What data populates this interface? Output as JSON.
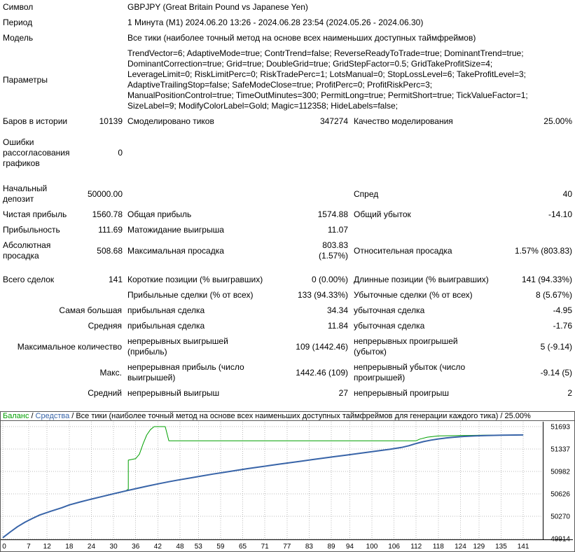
{
  "report": {
    "rows": [
      {
        "n": "row-symbol",
        "cells": [
          {
            "t": "Символ",
            "span": 2,
            "al": "l"
          },
          {
            "t": "GBPJPY (Great Britain Pound vs Japanese Yen)",
            "span": 4,
            "al": "l"
          }
        ]
      },
      {
        "n": "row-period",
        "cells": [
          {
            "t": "Период",
            "span": 2,
            "al": "l"
          },
          {
            "t": "1 Минута (M1) 2024.06.20 13:26 - 2024.06.28 23:54 (2024.05.26 - 2024.06.30)",
            "span": 4,
            "al": "l"
          }
        ]
      },
      {
        "n": "row-model",
        "cells": [
          {
            "t": "Модель",
            "span": 2,
            "al": "l"
          },
          {
            "t": "Все тики (наиболее точный метод на основе всех наименьших доступных таймфреймов)",
            "span": 4,
            "al": "l"
          }
        ]
      },
      {
        "n": "row-parameters",
        "cells": [
          {
            "t": "Параметры",
            "span": 2,
            "al": "l"
          },
          {
            "t": "TrendVector=6; AdaptiveMode=true; ContrTrend=false; ReverseReadyToTrade=true; DominantTrend=true;\nDominantCorrection=true; Grid=true; DoubleGrid=true; GridStepFactor=0.5; GridTakeProfitSize=4;\nLeverageLimit=0; RiskLimitPerc=0; RiskTradePerc=1; LotsManual=0; StopLossLevel=6; TakeProfitLevel=3;\nAdaptiveTrailingStop=false; SafeModeClose=true; ProfitPerc=0; ProfitRiskPerc=3;\nManualPositionControl=true; TimeOutMinutes=300; PermitLong=true; PermitShort=true; TickValueFactor=1;\nSizeLabel=9; ModifyColorLabel=Gold; Magic=112358; HideLabels=false;",
            "span": 4,
            "al": "l",
            "pre": true
          }
        ]
      },
      {
        "n": "row-bars-ticks-quality",
        "cells": [
          {
            "t": "Баров в истории",
            "al": "l"
          },
          {
            "t": "10139",
            "al": "r"
          },
          {
            "t": "Смоделировано тиков",
            "al": "l"
          },
          {
            "t": "347274",
            "al": "r"
          },
          {
            "t": "Качество моделирования",
            "al": "l"
          },
          {
            "t": "25.00%",
            "al": "r"
          }
        ]
      },
      {
        "sp": 8
      },
      {
        "n": "row-chart-errors",
        "cells": [
          {
            "t": "Ошибки\nрассогласования\nграфиков",
            "al": "l",
            "pre": true
          },
          {
            "t": "0",
            "al": "r"
          },
          {
            "t": "",
            "span": 4,
            "al": "l"
          }
        ]
      },
      {
        "sp": 14
      },
      {
        "n": "row-initial-deposit-spread",
        "cells": [
          {
            "t": "Начальный\nдепозит",
            "al": "l",
            "pre": true
          },
          {
            "t": "50000.00",
            "al": "r"
          },
          {
            "t": "",
            "al": "l"
          },
          {
            "t": "",
            "al": "r"
          },
          {
            "t": "Спред",
            "al": "l"
          },
          {
            "t": "40",
            "al": "r"
          }
        ]
      },
      {
        "n": "row-net-profit",
        "cells": [
          {
            "t": "Чистая прибыль",
            "al": "l"
          },
          {
            "t": "1560.78",
            "al": "r"
          },
          {
            "t": "Общая прибыль",
            "al": "l"
          },
          {
            "t": "1574.88",
            "al": "r"
          },
          {
            "t": "Общий убыток",
            "al": "l"
          },
          {
            "t": "-14.10",
            "al": "r"
          }
        ]
      },
      {
        "n": "row-profit-factor",
        "cells": [
          {
            "t": "Прибыльность",
            "al": "l"
          },
          {
            "t": "111.69",
            "al": "r"
          },
          {
            "t": "Матожидание выигрыша",
            "al": "l"
          },
          {
            "t": "11.07",
            "al": "r"
          },
          {
            "t": "",
            "al": "l"
          },
          {
            "t": "",
            "al": "r"
          }
        ]
      },
      {
        "n": "row-drawdown",
        "cells": [
          {
            "t": "Абсолютная\nпросадка",
            "al": "l",
            "pre": true
          },
          {
            "t": "508.68",
            "al": "r"
          },
          {
            "t": "Максимальная просадка",
            "al": "l"
          },
          {
            "t": "803.83 (1.57%)",
            "al": "r"
          },
          {
            "t": "Относительная просадка",
            "al": "l"
          },
          {
            "t": "1.57% (803.83)",
            "al": "r"
          }
        ]
      },
      {
        "sp": 12
      },
      {
        "n": "row-total-trades",
        "cells": [
          {
            "t": "Всего сделок",
            "al": "l"
          },
          {
            "t": "141",
            "al": "r"
          },
          {
            "t": "Короткие позиции (% выигравших)",
            "al": "l"
          },
          {
            "t": "0 (0.00%)",
            "al": "r"
          },
          {
            "t": "Длинные позиции (% выигравших)",
            "al": "l"
          },
          {
            "t": "141 (94.33%)",
            "al": "r"
          }
        ]
      },
      {
        "n": "row-profit-loss-trades",
        "cells": [
          {
            "t": "",
            "al": "l"
          },
          {
            "t": "",
            "al": "r"
          },
          {
            "t": "Прибыльные сделки (% от всех)",
            "al": "l"
          },
          {
            "t": "133 (94.33%)",
            "al": "r"
          },
          {
            "t": "Убыточные сделки (% от всех)",
            "al": "l"
          },
          {
            "t": "8 (5.67%)",
            "al": "r"
          }
        ]
      },
      {
        "n": "row-largest-trade",
        "cells": [
          {
            "t": "Самая большая",
            "span": 2,
            "al": "r"
          },
          {
            "t": "прибыльная сделка",
            "al": "l"
          },
          {
            "t": "34.34",
            "al": "r"
          },
          {
            "t": "убыточная сделка",
            "al": "l"
          },
          {
            "t": "-4.95",
            "al": "r"
          }
        ]
      },
      {
        "n": "row-average-trade",
        "cells": [
          {
            "t": "Средняя",
            "span": 2,
            "al": "r"
          },
          {
            "t": "прибыльная сделка",
            "al": "l"
          },
          {
            "t": "11.84",
            "al": "r"
          },
          {
            "t": "убыточная сделка",
            "al": "l"
          },
          {
            "t": "-1.76",
            "al": "r"
          }
        ]
      },
      {
        "n": "row-max-consecutive",
        "cells": [
          {
            "t": "Максимальное количество",
            "span": 2,
            "al": "r"
          },
          {
            "t": "непрерывных выигрышей\n(прибыль)",
            "al": "l",
            "pre": true
          },
          {
            "t": "109 (1442.46)",
            "al": "r"
          },
          {
            "t": "непрерывных проигрышей\n(убыток)",
            "al": "l",
            "pre": true
          },
          {
            "t": "5 (-9.14)",
            "al": "r"
          }
        ]
      },
      {
        "n": "row-maximal-consecutive",
        "cells": [
          {
            "t": "Макс.",
            "span": 2,
            "al": "r"
          },
          {
            "t": "непрерывная прибыль (число\nвыигрышей)",
            "al": "l",
            "pre": true
          },
          {
            "t": "1442.46 (109)",
            "al": "r"
          },
          {
            "t": "непрерывный убыток (число\nпроигрышей)",
            "al": "l",
            "pre": true
          },
          {
            "t": "-9.14 (5)",
            "al": "r"
          }
        ]
      },
      {
        "n": "row-average-consecutive",
        "cells": [
          {
            "t": "Средний",
            "span": 2,
            "al": "r"
          },
          {
            "t": "непрерывный выигрыш",
            "al": "l"
          },
          {
            "t": "27",
            "al": "r"
          },
          {
            "t": "непрерывный проигрыш",
            "al": "l"
          },
          {
            "t": "2",
            "al": "r"
          }
        ]
      }
    ]
  },
  "chart": {
    "legend": {
      "balance": "Баланс",
      "equity": "Средства",
      "model": "Все тики (наиболее точный метод на основе всех наименьших доступных таймфреймов для генерации каждого тика)",
      "quality": "25.00%",
      "sep": "/"
    },
    "colors": {
      "balance_line": "#00A000",
      "equity_line": "#3864A8",
      "grid": "#bbbbbb",
      "axis": "#000000",
      "border": "#5a5a5a",
      "text": "#000000"
    }
  },
  "chart_data": {
    "type": "line",
    "title": "",
    "xlabel": "",
    "ylabel": "",
    "x_range": [
      0,
      141
    ],
    "y_range": [
      49914,
      51693
    ],
    "x_ticks": [
      0,
      7,
      12,
      18,
      24,
      30,
      36,
      42,
      48,
      53,
      59,
      65,
      71,
      77,
      83,
      89,
      94,
      100,
      106,
      112,
      118,
      124,
      129,
      135,
      141
    ],
    "y_ticks": [
      51693,
      51337,
      50982,
      50626,
      50270,
      49914
    ],
    "grid": "dotted",
    "legend_position": "top",
    "series": [
      {
        "name": "Баланс",
        "color": "#00A000",
        "width": 1,
        "points": [
          [
            0,
            49930
          ],
          [
            2,
            50020
          ],
          [
            4,
            50105
          ],
          [
            6,
            50175
          ],
          [
            8,
            50235
          ],
          [
            10,
            50290
          ],
          [
            13,
            50350
          ],
          [
            16,
            50405
          ],
          [
            18,
            50450
          ],
          [
            21,
            50498
          ],
          [
            24,
            50542
          ],
          [
            27,
            50585
          ],
          [
            30,
            50627
          ],
          [
            33,
            50665
          ],
          [
            34,
            50700
          ],
          [
            34,
            51160
          ],
          [
            36,
            51185
          ],
          [
            37,
            51255
          ],
          [
            38,
            51420
          ],
          [
            39,
            51560
          ],
          [
            40,
            51645
          ],
          [
            41,
            51693
          ],
          [
            44,
            51693
          ],
          [
            45,
            51468
          ],
          [
            112,
            51468
          ],
          [
            113,
            51495
          ],
          [
            115,
            51525
          ],
          [
            118,
            51545
          ],
          [
            124,
            51552
          ],
          [
            130,
            51557
          ],
          [
            141,
            51561
          ]
        ]
      },
      {
        "name": "Средства",
        "color": "#3864A8",
        "width": 2,
        "points": [
          [
            0,
            49930
          ],
          [
            2,
            50020
          ],
          [
            4,
            50105
          ],
          [
            6,
            50175
          ],
          [
            8,
            50235
          ],
          [
            10,
            50290
          ],
          [
            13,
            50350
          ],
          [
            16,
            50405
          ],
          [
            18,
            50450
          ],
          [
            21,
            50498
          ],
          [
            24,
            50542
          ],
          [
            27,
            50585
          ],
          [
            30,
            50627
          ],
          [
            33,
            50668
          ],
          [
            36,
            50708
          ],
          [
            39,
            50747
          ],
          [
            42,
            50783
          ],
          [
            45,
            50818
          ],
          [
            48,
            50850
          ],
          [
            51,
            50880
          ],
          [
            54,
            50910
          ],
          [
            57,
            50940
          ],
          [
            60,
            50968
          ],
          [
            63,
            50996
          ],
          [
            66,
            51022
          ],
          [
            69,
            51048
          ],
          [
            72,
            51073
          ],
          [
            75,
            51098
          ],
          [
            78,
            51122
          ],
          [
            81,
            51146
          ],
          [
            84,
            51170
          ],
          [
            87,
            51194
          ],
          [
            90,
            51218
          ],
          [
            93,
            51241
          ],
          [
            96,
            51264
          ],
          [
            99,
            51287
          ],
          [
            102,
            51310
          ],
          [
            105,
            51334
          ],
          [
            108,
            51362
          ],
          [
            110,
            51390
          ],
          [
            112,
            51425
          ],
          [
            114,
            51455
          ],
          [
            116,
            51478
          ],
          [
            118,
            51497
          ],
          [
            120,
            51512
          ],
          [
            122,
            51524
          ],
          [
            125,
            51537
          ],
          [
            128,
            51546
          ],
          [
            131,
            51552
          ],
          [
            135,
            51557
          ],
          [
            141,
            51561
          ]
        ]
      }
    ]
  }
}
